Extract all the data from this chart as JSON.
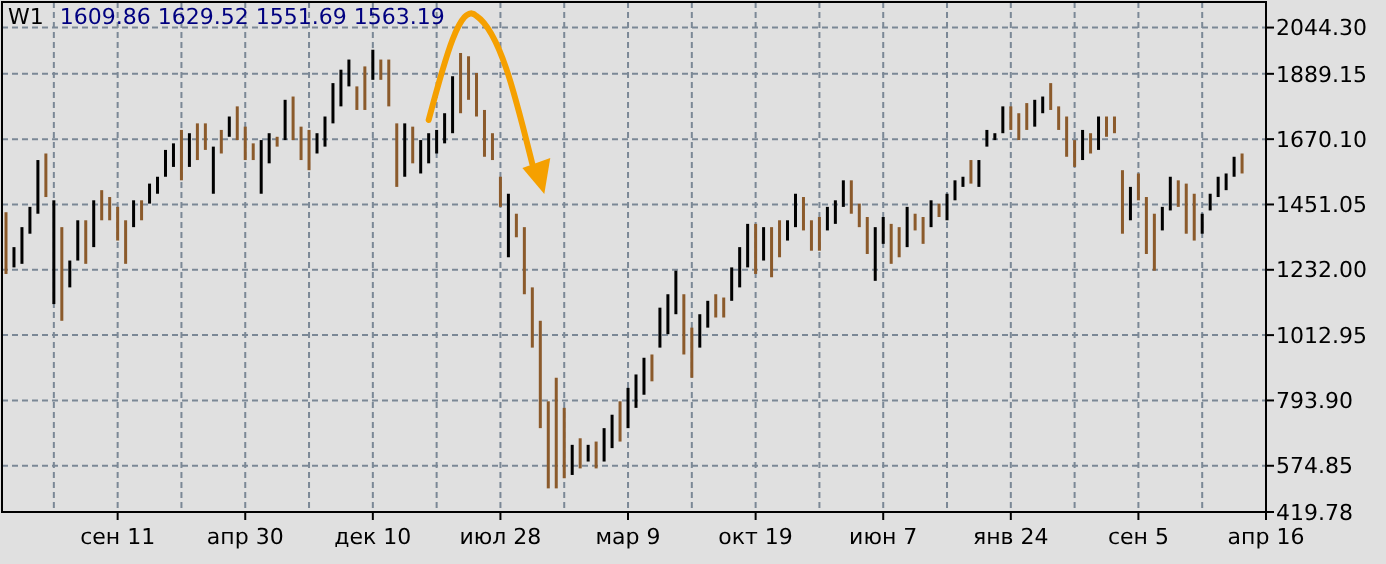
{
  "chart_data": {
    "type": "bar",
    "title": "W1",
    "subtitle": "1609.86  1629.52  1551.69  1563.19",
    "categories": [
      null,
      null,
      null,
      null,
      null,
      null,
      null,
      null,
      null,
      null,
      null,
      null,
      null,
      null,
      "сен 11",
      null,
      null,
      null,
      null,
      null,
      null,
      null,
      null,
      null,
      null,
      null,
      null,
      null,
      null,
      null,
      "апр 30",
      null,
      null,
      null,
      null,
      null,
      null,
      null,
      null,
      null,
      null,
      null,
      null,
      null,
      null,
      null,
      "дек 10",
      null,
      null,
      null,
      null,
      null,
      null,
      null,
      null,
      null,
      null,
      null,
      null,
      null,
      null,
      null,
      "июл 28",
      null,
      null,
      null,
      null,
      null,
      null,
      null,
      null,
      null,
      null,
      null,
      null,
      null,
      null,
      null,
      "мар 9",
      null,
      null,
      null,
      null,
      null,
      null,
      null,
      null,
      null,
      null,
      null,
      null,
      null,
      null,
      null,
      "окт 19",
      null,
      null,
      null,
      null,
      null,
      null,
      null,
      null,
      null,
      null,
      null,
      null,
      null,
      null,
      null,
      "июн 7",
      null,
      null,
      null,
      null,
      null,
      null,
      null,
      null,
      null,
      null,
      null,
      null,
      null,
      null,
      null,
      "янв 24",
      null,
      null,
      null,
      null,
      null,
      null,
      null,
      null,
      null,
      null,
      null,
      null,
      null,
      null,
      null,
      "сен 5",
      null,
      null,
      null,
      null,
      null,
      null,
      null,
      null,
      null,
      null,
      null,
      null,
      null,
      null,
      null,
      "апр 16"
    ],
    "base": [
      1218,
      1240,
      1252,
      1353,
      1420,
      1476,
      1117,
      1061,
      1173,
      1263,
      1252,
      1308,
      1398,
      1398,
      1330,
      1252,
      1375,
      1398,
      1454,
      1487,
      1544,
      1577,
      1532,
      1577,
      1600,
      1634,
      1487,
      1622,
      1678,
      1667,
      1600,
      1600,
      1487,
      1589,
      1645,
      1667,
      1667,
      1600,
      1566,
      1622,
      1645,
      1723,
      1780,
      1847,
      1768,
      1768,
      1869,
      1869,
      1780,
      1510,
      1544,
      1589,
      1555,
      1589,
      1622,
      1656,
      1690,
      1757,
      1802,
      1746,
      1611,
      1600,
      1443,
      1274,
      1341,
      1150,
      971,
      701,
      499,
      499,
      533,
      544,
      566,
      589,
      566,
      589,
      634,
      656,
      701,
      769,
      813,
      858,
      971,
      1016,
      1083,
      948,
      870,
      971,
      1038,
      1072,
      1072,
      1128,
      1173,
      1240,
      1218,
      1263,
      1207,
      1274,
      1330,
      1375,
      1364,
      1296,
      1296,
      1364,
      1386,
      1443,
      1420,
      1375,
      1285,
      1195,
      1319,
      1252,
      1274,
      1308,
      1364,
      1319,
      1375,
      1409,
      1398,
      1465,
      1510,
      1521,
      1510,
      1645,
      1667,
      1690,
      1701,
      1667,
      1701,
      1712,
      1757,
      1768,
      1701,
      1611,
      1577,
      1600,
      1622,
      1634,
      1678,
      1690,
      1353,
      1398,
      1465,
      1285,
      1229,
      1364,
      1431,
      1443,
      1353,
      1330,
      1353,
      1431,
      1476,
      1499,
      1544,
      1555,
      null,
      null,
      null
    ],
    "values": [
      207,
      68,
      123,
      90,
      180,
      146,
      348,
      314,
      90,
      135,
      146,
      157,
      101,
      78,
      113,
      146,
      90,
      67,
      67,
      57,
      90,
      79,
      169,
      113,
      123,
      89,
      158,
      79,
      68,
      113,
      112,
      56,
      180,
      101,
      33,
      135,
      146,
      112,
      135,
      68,
      101,
      135,
      123,
      90,
      79,
      146,
      101,
      68,
      157,
      213,
      179,
      123,
      112,
      101,
      79,
      101,
      191,
      202,
      146,
      146,
      157,
      90,
      101,
      213,
      79,
      225,
      202,
      360,
      292,
      371,
      236,
      101,
      101,
      56,
      90,
      112,
      112,
      135,
      135,
      112,
      124,
      90,
      134,
      134,
      146,
      202,
      168,
      112,
      90,
      78,
      67,
      112,
      135,
      146,
      168,
      112,
      168,
      124,
      68,
      112,
      112,
      102,
      113,
      79,
      79,
      89,
      112,
      79,
      124,
      180,
      90,
      134,
      101,
      135,
      56,
      90,
      90,
      45,
      89,
      67,
      34,
      79,
      90,
      56,
      23,
      90,
      79,
      90,
      90,
      90,
      56,
      90,
      79,
      135,
      90,
      101,
      68,
      112,
      68,
      56,
      213,
      112,
      90,
      191,
      191,
      79,
      113,
      89,
      168,
      157,
      67,
      56,
      68,
      56,
      67,
      67,
      null,
      null,
      null
    ],
    "colors": [
      "#8b5a2b",
      "#000000",
      "#000000",
      "#000000",
      "#000000",
      "#8b5a2b",
      "#000000",
      "#8b5a2b",
      "#000000",
      "#000000",
      "#8b5a2b",
      "#000000",
      "#8b5a2b",
      "#8b5a2b",
      "#8b5a2b",
      "#8b5a2b",
      "#000000",
      "#8b5a2b",
      "#000000",
      "#000000",
      "#000000",
      "#000000",
      "#8b5a2b",
      "#000000",
      "#8b5a2b",
      "#8b5a2b",
      "#000000",
      "#8b5a2b",
      "#000000",
      "#8b5a2b",
      "#8b5a2b",
      "#8b5a2b",
      "#000000",
      "#000000",
      "#8b5a2b",
      "#000000",
      "#8b5a2b",
      "#8b5a2b",
      "#8b5a2b",
      "#000000",
      "#000000",
      "#000000",
      "#000000",
      "#000000",
      "#8b5a2b",
      "#8b5a2b",
      "#000000",
      "#8b5a2b",
      "#8b5a2b",
      "#8b5a2b",
      "#000000",
      "#8b5a2b",
      "#000000",
      "#000000",
      "#000000",
      "#000000",
      "#000000",
      "#8b5a2b",
      "#8b5a2b",
      "#8b5a2b",
      "#8b5a2b",
      "#8b5a2b",
      "#8b5a2b",
      "#000000",
      "#8b5a2b",
      "#8b5a2b",
      "#8b5a2b",
      "#8b5a2b",
      "#8b5a2b",
      "#8b5a2b",
      "#8b5a2b",
      "#000000",
      "#8b5a2b",
      "#000000",
      "#8b5a2b",
      "#000000",
      "#000000",
      "#8b5a2b",
      "#000000",
      "#000000",
      "#000000",
      "#8b5a2b",
      "#000000",
      "#000000",
      "#000000",
      "#8b5a2b",
      "#8b5a2b",
      "#000000",
      "#000000",
      "#8b5a2b",
      "#8b5a2b",
      "#000000",
      "#000000",
      "#000000",
      "#8b5a2b",
      "#000000",
      "#8b5a2b",
      "#8b5a2b",
      "#000000",
      "#000000",
      "#8b5a2b",
      "#8b5a2b",
      "#8b5a2b",
      "#000000",
      "#000000",
      "#000000",
      "#8b5a2b",
      "#8b5a2b",
      "#8b5a2b",
      "#000000",
      "#000000",
      "#8b5a2b",
      "#8b5a2b",
      "#000000",
      "#8b5a2b",
      "#8b5a2b",
      "#000000",
      "#8b5a2b",
      "#000000",
      "#000000",
      "#000000",
      "#8b5a2b",
      "#000000",
      "#000000",
      "#000000",
      "#000000",
      "#8b5a2b",
      "#8b5a2b",
      "#8b5a2b",
      "#000000",
      "#000000",
      "#8b5a2b",
      "#8b5a2b",
      "#8b5a2b",
      "#8b5a2b",
      "#000000",
      "#8b5a2b",
      "#000000",
      "#8b5a2b",
      "#8b5a2b",
      "#8b5a2b",
      "#000000",
      "#8b5a2b",
      "#8b5a2b",
      "#8b5a2b",
      "#000000",
      "#000000",
      "#8b5a2b",
      "#8b5a2b",
      "#8b5a2b",
      "#000000",
      "#000000",
      "#000000",
      "#000000",
      "#000000",
      "#8b5a2b",
      null,
      null,
      null
    ],
    "ylim": [
      419.78,
      2130
    ],
    "yticks": [
      {
        "value": 419.78,
        "label": "419.78"
      },
      {
        "value": 574.85,
        "label": "574.85"
      },
      {
        "value": 793.9,
        "label": "793.90"
      },
      {
        "value": 1012.95,
        "label": "1012.95"
      },
      {
        "value": 1232,
        "label": "1232.00"
      },
      {
        "value": 1451.05,
        "label": "1451.05"
      },
      {
        "value": 1670.1,
        "label": "1670.10"
      },
      {
        "value": 1889.15,
        "label": "1889.15"
      },
      {
        "value": 2044.3,
        "label": "2044.30"
      }
    ],
    "grid": true
  }
}
